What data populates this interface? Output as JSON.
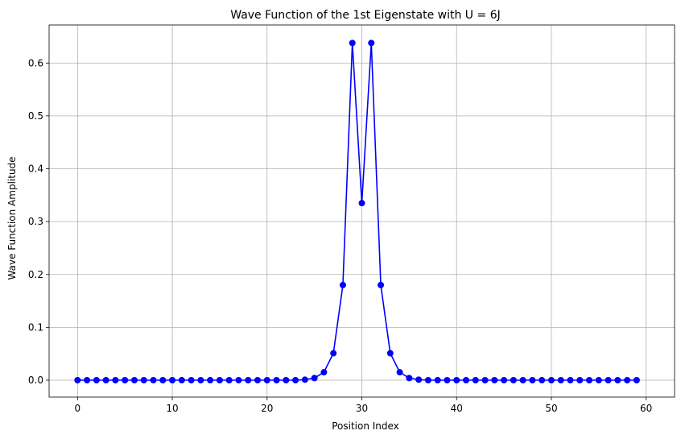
{
  "chart_data": {
    "type": "line",
    "title": "Wave Function of the 1st Eigenstate with U = 6J",
    "xlabel": "Position Index",
    "ylabel": "Wave Function Amplitude",
    "xlim": [
      -3,
      63
    ],
    "ylim": [
      -0.032,
      0.672
    ],
    "xticks": [
      0,
      10,
      20,
      30,
      40,
      50,
      60
    ],
    "xtick_labels": [
      "0",
      "10",
      "20",
      "30",
      "40",
      "50",
      "60"
    ],
    "yticks": [
      0.0,
      0.1,
      0.2,
      0.3,
      0.4,
      0.5,
      0.6
    ],
    "ytick_labels": [
      "0.0",
      "0.1",
      "0.2",
      "0.3",
      "0.4",
      "0.5",
      "0.6"
    ],
    "grid": true,
    "legend": false,
    "series": [
      {
        "color": "#0000ff",
        "marker": "circle",
        "x": [
          0,
          1,
          2,
          3,
          4,
          5,
          6,
          7,
          8,
          9,
          10,
          11,
          12,
          13,
          14,
          15,
          16,
          17,
          18,
          19,
          20,
          21,
          22,
          23,
          24,
          25,
          26,
          27,
          28,
          29,
          30,
          31,
          32,
          33,
          34,
          35,
          36,
          37,
          38,
          39,
          40,
          41,
          42,
          43,
          44,
          45,
          46,
          47,
          48,
          49,
          50,
          51,
          52,
          53,
          54,
          55,
          56,
          57,
          58,
          59
        ],
        "values": [
          0,
          0,
          0,
          0,
          0,
          0,
          0,
          0,
          0,
          0,
          0,
          0,
          0,
          0,
          0,
          0,
          0,
          0,
          0,
          0,
          0,
          0,
          0,
          0,
          0.001,
          0.004,
          0.015,
          0.051,
          0.18,
          0.638,
          0.335,
          0.638,
          0.18,
          0.051,
          0.015,
          0.004,
          0.001,
          0,
          0,
          0,
          0,
          0,
          0,
          0,
          0,
          0,
          0,
          0,
          0,
          0,
          0,
          0,
          0,
          0,
          0,
          0,
          0,
          0,
          0,
          0
        ]
      }
    ]
  }
}
